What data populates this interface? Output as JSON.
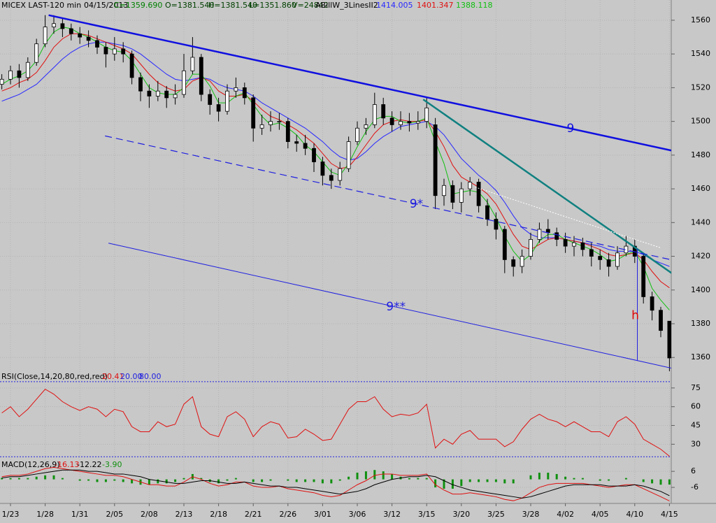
{
  "chart_data": [
    {
      "type": "candlestick",
      "title": "MICEX LAST-120 min",
      "header": [
        {
          "text": "04/15/2013",
          "color": "#000000"
        },
        {
          "text": "C=1359.690",
          "color": "#008000"
        },
        {
          "text": "O=1381.540",
          "color": "#004000"
        },
        {
          "text": "H=1381.540",
          "color": "#004000"
        },
        {
          "text": "L=1351.860",
          "color": "#004000"
        },
        {
          "text": "V=24842",
          "color": "#004000"
        }
      ],
      "indicator": "ABillW_3LinesII2",
      "open": [
        1522,
        1525,
        1530,
        1526,
        1535,
        1546,
        1556,
        1558,
        1555,
        1552,
        1550,
        1548,
        1544,
        1540,
        1543,
        1540,
        1526,
        1518,
        1515,
        1518,
        1514,
        1516,
        1530,
        1538,
        1516,
        1510,
        1506,
        1518,
        1520,
        1514,
        1496,
        1498,
        1500,
        1500,
        1488,
        1487,
        1484,
        1476,
        1468,
        1465,
        1472,
        1488,
        1496,
        1498,
        1510,
        1502,
        1498,
        1500,
        1499,
        1500,
        1498,
        1456,
        1462,
        1452,
        1460,
        1464,
        1450,
        1442,
        1436,
        1418,
        1414,
        1420,
        1430,
        1436,
        1434,
        1430,
        1426,
        1428,
        1424,
        1420,
        1418,
        1414,
        1422,
        1426,
        1420,
        1396,
        1388,
        1381.54
      ],
      "high": [
        1528,
        1533,
        1534,
        1538,
        1549,
        1563,
        1563,
        1561,
        1558,
        1556,
        1554,
        1551,
        1547,
        1550,
        1547,
        1542,
        1529,
        1522,
        1524,
        1521,
        1522,
        1540,
        1550,
        1540,
        1519,
        1514,
        1522,
        1526,
        1523,
        1516,
        1504,
        1506,
        1505,
        1502,
        1492,
        1492,
        1487,
        1479,
        1472,
        1476,
        1491,
        1500,
        1502,
        1517,
        1514,
        1506,
        1506,
        1505,
        1506,
        1514,
        1502,
        1466,
        1465,
        1464,
        1467,
        1466,
        1454,
        1446,
        1438,
        1420,
        1424,
        1434,
        1440,
        1442,
        1437,
        1434,
        1432,
        1431,
        1428,
        1424,
        1422,
        1426,
        1432,
        1430,
        1422,
        1399,
        1390,
        1381.54
      ],
      "low": [
        1519,
        1522,
        1520,
        1524,
        1533,
        1544,
        1552,
        1550,
        1548,
        1546,
        1544,
        1540,
        1532,
        1536,
        1535,
        1522,
        1512,
        1508,
        1512,
        1508,
        1510,
        1514,
        1528,
        1512,
        1504,
        1500,
        1504,
        1514,
        1510,
        1488,
        1492,
        1494,
        1495,
        1484,
        1482,
        1480,
        1470,
        1462,
        1460,
        1462,
        1470,
        1486,
        1492,
        1496,
        1498,
        1494,
        1495,
        1494,
        1495,
        1496,
        1448,
        1450,
        1448,
        1446,
        1456,
        1446,
        1438,
        1430,
        1410,
        1408,
        1410,
        1418,
        1428,
        1430,
        1426,
        1422,
        1420,
        1420,
        1414,
        1412,
        1408,
        1412,
        1420,
        1416,
        1392,
        1382,
        1372,
        1351.86
      ],
      "close": [
        1525,
        1530,
        1526,
        1535,
        1546,
        1556,
        1558,
        1555,
        1552,
        1550,
        1548,
        1544,
        1540,
        1543,
        1540,
        1526,
        1518,
        1515,
        1518,
        1514,
        1516,
        1530,
        1538,
        1516,
        1510,
        1506,
        1518,
        1520,
        1514,
        1496,
        1498,
        1500,
        1500,
        1488,
        1487,
        1484,
        1476,
        1468,
        1465,
        1472,
        1488,
        1496,
        1498,
        1510,
        1502,
        1498,
        1500,
        1499,
        1500,
        1508,
        1456,
        1462,
        1452,
        1460,
        1464,
        1450,
        1442,
        1436,
        1418,
        1414,
        1420,
        1430,
        1436,
        1434,
        1430,
        1426,
        1428,
        1424,
        1420,
        1418,
        1414,
        1422,
        1426,
        1420,
        1396,
        1388,
        1376,
        1359.69
      ],
      "series": [
        {
          "color": "#2828ff",
          "values": [
            1512,
            1514,
            1516,
            1519,
            1522,
            1527,
            1532,
            1537,
            1541,
            1544,
            1546,
            1547,
            1547,
            1546,
            1545,
            1543,
            1540,
            1536,
            1532,
            1528,
            1525,
            1524,
            1525,
            1526,
            1525,
            1522,
            1520,
            1519,
            1518,
            1515,
            1511,
            1508,
            1505,
            1502,
            1499,
            1496,
            1492,
            1488,
            1483,
            1479,
            1477,
            1478,
            1482,
            1487,
            1491,
            1494,
            1497,
            1498,
            1499,
            1500,
            1497,
            1492,
            1485,
            1478,
            1473,
            1468,
            1464,
            1459,
            1452,
            1444,
            1437,
            1433,
            1431,
            1431,
            1431,
            1430,
            1429,
            1428,
            1427,
            1426,
            1424,
            1423,
            1423,
            1423,
            1421,
            1418,
            1416,
            1414.005
          ]
        },
        {
          "color": "#e01010",
          "values": [
            1518,
            1520,
            1523,
            1525,
            1529,
            1536,
            1544,
            1549,
            1552,
            1552,
            1551,
            1549,
            1547,
            1545,
            1543,
            1540,
            1534,
            1528,
            1523,
            1520,
            1518,
            1519,
            1524,
            1526,
            1524,
            1518,
            1515,
            1515,
            1516,
            1512,
            1507,
            1503,
            1501,
            1498,
            1495,
            1491,
            1487,
            1481,
            1475,
            1472,
            1473,
            1479,
            1486,
            1493,
            1498,
            1500,
            1501,
            1500,
            1500,
            1501,
            1494,
            1485,
            1474,
            1467,
            1464,
            1461,
            1457,
            1451,
            1442,
            1433,
            1426,
            1424,
            1427,
            1430,
            1431,
            1430,
            1429,
            1428,
            1426,
            1424,
            1421,
            1420,
            1421,
            1422,
            1418,
            1411,
            1405,
            1401.347
          ]
        },
        {
          "color": "#10c010",
          "values": [
            1522,
            1525,
            1527,
            1530,
            1536,
            1546,
            1553,
            1556,
            1555,
            1552,
            1550,
            1547,
            1544,
            1542,
            1541,
            1536,
            1528,
            1520,
            1517,
            1516,
            1516,
            1520,
            1528,
            1528,
            1521,
            1511,
            1511,
            1515,
            1517,
            1510,
            1503,
            1498,
            1499,
            1496,
            1492,
            1486,
            1482,
            1476,
            1470,
            1468,
            1475,
            1485,
            1494,
            1501,
            1503,
            1503,
            1500,
            1499,
            1500,
            1502,
            1488,
            1475,
            1457,
            1458,
            1459,
            1458,
            1452,
            1443,
            1432,
            1423,
            1417,
            1421,
            1429,
            1433,
            1433,
            1430,
            1428,
            1426,
            1424,
            1421,
            1417,
            1418,
            1421,
            1423,
            1414,
            1401,
            1394,
            1388.118
          ]
        }
      ],
      "annotations": [
        {
          "label": "9",
          "color": "#1010e0",
          "style": "bold",
          "points": [
            [
              5.4,
              1563
            ],
            [
              78.8,
              1481
            ]
          ]
        },
        {
          "color": "#108080",
          "style": "bold",
          "points": [
            [
              48.6,
              1513
            ],
            [
              78.1,
              1407
            ]
          ]
        },
        {
          "label": "9*",
          "color": "#2020e0",
          "style": "dashed",
          "points": [
            [
              11.9,
              1491.4
            ],
            [
              78.4,
              1416.6
            ]
          ]
        },
        {
          "label": "9**",
          "color": "#2020e0",
          "style": "thin",
          "points": [
            [
              12.3,
              1427.8
            ],
            [
              78.6,
              1352.1
            ]
          ]
        },
        {
          "color": "#ffffff",
          "style": "dotted",
          "points": [
            [
              54.6,
              1461
            ],
            [
              76,
              1425
            ]
          ]
        },
        {
          "label": "h",
          "color": "#2020e0",
          "label_color": "#e00000",
          "style": "thin",
          "points": [
            [
              73.3,
              1424.5
            ],
            [
              73.3,
              1358.3
            ]
          ]
        }
      ],
      "ylim": [
        1346,
        1572
      ],
      "yticks": [
        1360,
        1380,
        1400,
        1420,
        1440,
        1460,
        1480,
        1500,
        1520,
        1540,
        1560
      ],
      "grid": true
    },
    {
      "type": "line",
      "title": "RSI(Close,14,20,80,red,red)",
      "color": "#e01010",
      "values": [
        55,
        60,
        52,
        58,
        66,
        74,
        70,
        64,
        60,
        57,
        60,
        58,
        52,
        58,
        56,
        44,
        40,
        40,
        48,
        44,
        46,
        62,
        68,
        44,
        38,
        36,
        52,
        56,
        50,
        36,
        44,
        48,
        46,
        35,
        36,
        42,
        38,
        33,
        34,
        46,
        58,
        64,
        64,
        68,
        58,
        52,
        54,
        53,
        55,
        62,
        27,
        34,
        30,
        38,
        41,
        34,
        34,
        34,
        28,
        32,
        42,
        50,
        54,
        50,
        48,
        44,
        48,
        44,
        40,
        40,
        36,
        48,
        52,
        46,
        34,
        30,
        26,
        20.41
      ],
      "levels": [
        {
          "value": 20,
          "label": "20.00"
        },
        {
          "value": 80,
          "label": "80.00"
        }
      ],
      "level_color": "#2020e0",
      "ylim": [
        19,
        80.5
      ],
      "yticks": [
        30,
        45,
        60,
        75
      ],
      "grid": true
    },
    {
      "type": "macd",
      "title": "MACD(12,26,9)",
      "categories": [
        null,
        "1/23",
        null,
        null,
        null,
        "1/28",
        null,
        null,
        null,
        "1/31",
        null,
        null,
        null,
        "2/05",
        null,
        null,
        null,
        "2/08",
        null,
        null,
        null,
        "2/13",
        null,
        null,
        null,
        "2/18",
        null,
        null,
        null,
        "2/21",
        null,
        null,
        null,
        "2/26",
        null,
        null,
        null,
        "3/01",
        null,
        null,
        null,
        "3/06",
        null,
        null,
        null,
        "3/12",
        null,
        null,
        null,
        "3/15",
        null,
        null,
        null,
        "3/20",
        null,
        null,
        null,
        "3/25",
        null,
        null,
        null,
        "3/28",
        null,
        null,
        null,
        "4/02",
        null,
        null,
        null,
        "4/05",
        null,
        null,
        null,
        "4/10",
        null,
        null,
        null,
        "4/15"
      ],
      "series": [
        {
          "color": "#e01010",
          "values": [
            2,
            3,
            3,
            4,
            6,
            8,
            9,
            8,
            7,
            6,
            5,
            4,
            3,
            3,
            2,
            0,
            -2,
            -4,
            -4,
            -5,
            -5,
            -2,
            2,
            0,
            -3,
            -5,
            -4,
            -2,
            -2,
            -5,
            -6,
            -6,
            -5,
            -7,
            -8,
            -9,
            -10,
            -12,
            -13,
            -12,
            -8,
            -4,
            -1,
            3,
            4,
            4,
            3,
            3,
            3,
            4,
            -4,
            -8,
            -11,
            -11,
            -10,
            -11,
            -12,
            -13,
            -15,
            -16,
            -14,
            -10,
            -6,
            -4,
            -3,
            -3,
            -3,
            -3,
            -4,
            -5,
            -6,
            -5,
            -4,
            -4,
            -7,
            -10,
            -13,
            -16.13
          ]
        },
        {
          "color": "#000000",
          "values": [
            1,
            2,
            2,
            3,
            4,
            5,
            6,
            7,
            7,
            7,
            6,
            6,
            5,
            4,
            4,
            3,
            2,
            0,
            -1,
            -2,
            -3,
            -3,
            -2,
            -1,
            -1,
            -2,
            -3,
            -3,
            -2,
            -3,
            -4,
            -5,
            -5,
            -6,
            -6,
            -7,
            -8,
            -9,
            -10,
            -11,
            -10,
            -9,
            -7,
            -4,
            -2,
            0,
            1,
            2,
            2,
            3,
            2,
            -1,
            -4,
            -6,
            -8,
            -9,
            -10,
            -11,
            -12,
            -13,
            -14,
            -13,
            -11,
            -9,
            -7,
            -5,
            -4,
            -4,
            -4,
            -4,
            -5,
            -5,
            -5,
            -4,
            -5,
            -7,
            -9,
            -12.22
          ]
        }
      ],
      "histogram": {
        "color": "#109010",
        "legend_label": "-3.90",
        "values": [
          1,
          1,
          1,
          1,
          2,
          3,
          3,
          1,
          0,
          -1,
          -1,
          -2,
          -2,
          -1,
          -2,
          -3,
          -4,
          -4,
          -3,
          -3,
          -2,
          1,
          4,
          1,
          -2,
          -3,
          -1,
          1,
          0,
          -2,
          -2,
          -1,
          0,
          -1,
          -2,
          -2,
          -2,
          -3,
          -3,
          -1,
          2,
          5,
          6,
          7,
          6,
          4,
          2,
          1,
          1,
          1,
          -6,
          -7,
          -7,
          -5,
          -2,
          -2,
          -2,
          -2,
          -3,
          -3,
          0,
          3,
          5,
          5,
          4,
          2,
          1,
          1,
          0,
          -1,
          -1,
          0,
          1,
          0,
          -2,
          -3,
          -4,
          -3.9
        ]
      },
      "ylim": [
        -18,
        16
      ],
      "yticks": [
        6,
        -6
      ],
      "grid": true
    }
  ]
}
